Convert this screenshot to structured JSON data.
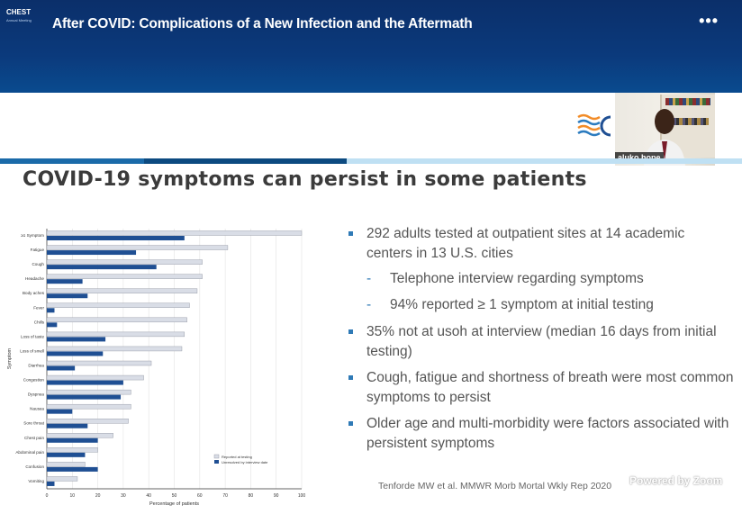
{
  "header": {
    "brand": "CHEST",
    "brand_sub": "Annual Meeting",
    "title": "After COVID: Complications of a New Infection and the Aftermath",
    "more_label": "•••"
  },
  "video": {
    "name": "aluko hope"
  },
  "slide": {
    "heading": "COVID-19 symptoms can persist in some patients",
    "bullets": [
      {
        "text": "292 adults tested at outpatient sites at 14 academic centers in 13 U.S. cities",
        "subs": [
          "Telephone interview regarding symptoms",
          "94% reported ≥ 1 symptom at initial testing"
        ]
      },
      {
        "text": "35% not at usoh at interview (median 16 days from initial testing)",
        "subs": []
      },
      {
        "text": "Cough, fatigue and shortness of breath were most common symptoms to persist",
        "subs": []
      },
      {
        "text": "Older age and multi-morbidity were factors associated with persistent symptoms",
        "subs": []
      }
    ],
    "citation": "Tenforde MW et al. MMWR Morb Mortal Wkly Rep 2020"
  },
  "watermark": "Powered by Zoom",
  "colors": {
    "reported": "#d9dde6",
    "unresolved": "#1f4f93",
    "accent": "#2f7ab6"
  },
  "chart_data": {
    "type": "bar",
    "orientation": "horizontal",
    "ylabel": "Symptom",
    "xlabel": "Percentage of patients",
    "xlim": [
      0,
      100
    ],
    "xticks": [
      0,
      10,
      20,
      30,
      40,
      50,
      60,
      70,
      80,
      90,
      100
    ],
    "categories": [
      "≥1 Symptom",
      "Fatigue",
      "Cough",
      "Headache",
      "Body aches",
      "Fever",
      "Chills",
      "Loss of taste",
      "Loss of smell",
      "Diarrhea",
      "Congestion",
      "Dyspnea",
      "Nausea",
      "Sore throat",
      "Chest pain",
      "Abdominal pain",
      "Confusion",
      "Vomiting"
    ],
    "series": [
      {
        "name": "Reported at testing",
        "values": [
          100,
          71,
          61,
          61,
          59,
          56,
          55,
          54,
          53,
          41,
          38,
          33,
          33,
          32,
          26,
          20,
          15,
          12
        ]
      },
      {
        "name": "Unresolved by interview date",
        "values": [
          54,
          35,
          43,
          14,
          16,
          3,
          4,
          23,
          22,
          11,
          30,
          29,
          10,
          16,
          20,
          15,
          20,
          3
        ]
      }
    ]
  }
}
